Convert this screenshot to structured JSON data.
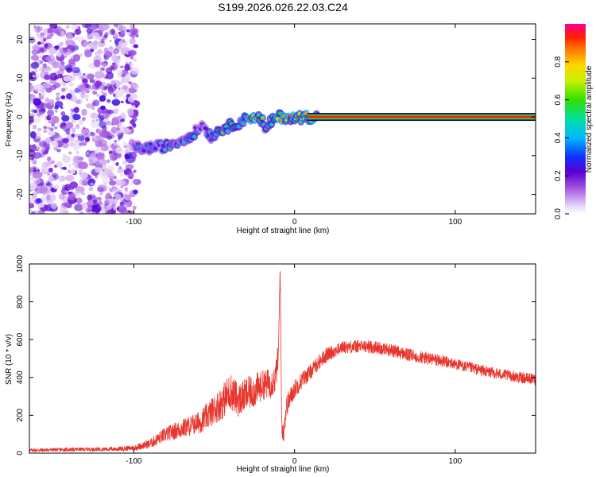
{
  "title": "S199.2026.026.22.03.C24",
  "spectrogram": {
    "xlabel": "Height of straight line (km)",
    "ylabel": "Frequency (Hz)",
    "xlim": [
      -165,
      150
    ],
    "ylim": [
      -25,
      24
    ],
    "xticks": [
      -100,
      0,
      100
    ],
    "yticks": [
      20,
      10,
      0,
      -10,
      -20
    ],
    "colorbar": {
      "label": "Normalized spectral amplitude",
      "range": [
        0,
        1
      ],
      "ticks": [
        0.0,
        0.2,
        0.4,
        0.6,
        0.8
      ]
    }
  },
  "chart_data": [
    {
      "type": "heatmap",
      "title": "S199.2026.026.22.03.C24",
      "xlabel": "Height of straight line (km)",
      "ylabel": "Frequency (Hz)",
      "xlim": [
        -165,
        150
      ],
      "ylim": [
        -25,
        24
      ],
      "colorbar_label": "Normalized spectral amplitude",
      "color_range": [
        0,
        1
      ],
      "noise_region_x": [
        -165,
        -98
      ],
      "signal_track": {
        "x": [
          -100,
          -90,
          -80,
          -70,
          -62,
          -57,
          -52,
          -45,
          -38,
          -32,
          -28,
          -24,
          -20,
          -18,
          -16,
          -14,
          -10,
          -5,
          0,
          5,
          10,
          20,
          50,
          100,
          150
        ],
        "frequency": [
          -8,
          -8,
          -7.5,
          -6,
          -4,
          -2,
          -5,
          -3,
          -2,
          -1,
          0,
          0,
          -1,
          -4,
          -2,
          -1,
          0,
          0,
          -0.5,
          0,
          0,
          0,
          0,
          0,
          0
        ],
        "amplitude": [
          0.35,
          0.4,
          0.45,
          0.4,
          0.45,
          0.3,
          0.5,
          0.6,
          0.7,
          0.75,
          0.9,
          0.85,
          0.6,
          0.5,
          0.6,
          0.7,
          0.95,
          0.9,
          0.85,
          0.95,
          0.95,
          0.95,
          0.95,
          0.95,
          0.95
        ]
      }
    },
    {
      "type": "line",
      "xlabel": "Height of straight line (km)",
      "ylabel": "SNR (10 * v/v)",
      "xlim": [
        -165,
        150
      ],
      "ylim": [
        0,
        1000
      ],
      "xticks": [
        -100,
        0,
        100
      ],
      "yticks": [
        0,
        200,
        400,
        600,
        800,
        1000
      ],
      "color": "#e8352e",
      "x": [
        -165,
        -150,
        -130,
        -110,
        -100,
        -90,
        -80,
        -70,
        -60,
        -55,
        -50,
        -45,
        -40,
        -35,
        -30,
        -25,
        -20,
        -15,
        -12,
        -10,
        -9,
        -8,
        -7,
        -5,
        0,
        5,
        10,
        15,
        20,
        25,
        30,
        40,
        50,
        60,
        70,
        80,
        90,
        100,
        110,
        120,
        130,
        140,
        150
      ],
      "y": [
        15,
        18,
        20,
        22,
        28,
        50,
        100,
        130,
        160,
        190,
        230,
        270,
        330,
        280,
        310,
        330,
        360,
        370,
        390,
        520,
        980,
        150,
        100,
        250,
        340,
        390,
        430,
        480,
        520,
        540,
        560,
        565,
        560,
        545,
        520,
        505,
        490,
        470,
        450,
        430,
        415,
        400,
        390
      ],
      "noise_amplitude": [
        10,
        10,
        10,
        12,
        15,
        25,
        40,
        50,
        60,
        70,
        80,
        90,
        100,
        90,
        90,
        90,
        80,
        80,
        80,
        80,
        20,
        60,
        60,
        60,
        50,
        45,
        40,
        40,
        40,
        35,
        35,
        35,
        35,
        35,
        35,
        35,
        35,
        30,
        30,
        30,
        30,
        30,
        30
      ]
    }
  ]
}
